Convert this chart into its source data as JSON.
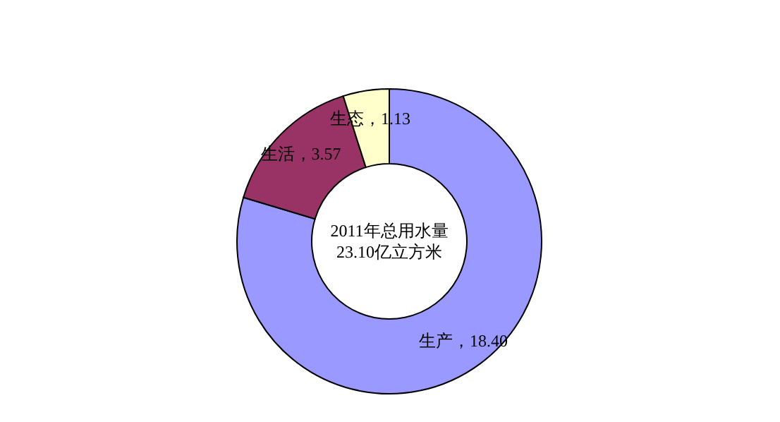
{
  "chart_data": {
    "type": "donut",
    "categories": [
      "生产",
      "生活",
      "生态"
    ],
    "values": [
      18.4,
      3.57,
      1.13
    ],
    "colors": [
      "#9999ff",
      "#993366",
      "#ffffcc"
    ],
    "value_labels": [
      "，18.40",
      "，3.57",
      "，1.13"
    ],
    "annotations": [
      "2011年总用水量",
      "23.10亿立方米"
    ]
  }
}
